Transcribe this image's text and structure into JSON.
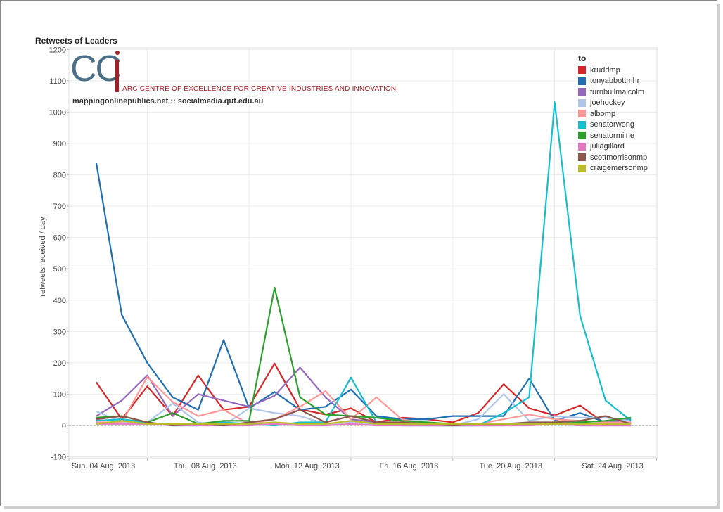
{
  "logo": {
    "letters": "CC",
    "subtitle": "ARC CENTRE OF EXCELLENCE FOR CREATIVE INDUSTRIES AND INNOVATION",
    "url": "mappingonlinepublics.net :: socialmedia.qut.edu.au"
  },
  "chart_data": {
    "type": "line",
    "title": "Retweets of Leaders",
    "xlabel": "",
    "ylabel": "retweets received / day",
    "ylim": [
      -100,
      1200
    ],
    "yticks": [
      -100,
      0,
      100,
      200,
      300,
      400,
      500,
      600,
      700,
      800,
      900,
      1000,
      1100,
      1200
    ],
    "x": [
      "2013-08-04",
      "2013-08-05",
      "2013-08-06",
      "2013-08-07",
      "2013-08-08",
      "2013-08-09",
      "2013-08-10",
      "2013-08-11",
      "2013-08-12",
      "2013-08-13",
      "2013-08-14",
      "2013-08-15",
      "2013-08-16",
      "2013-08-17",
      "2013-08-18",
      "2013-08-19",
      "2013-08-20",
      "2013-08-21",
      "2013-08-22",
      "2013-08-23",
      "2013-08-24",
      "2013-08-25"
    ],
    "xtick_labels": [
      "Sun. 04 Aug. 2013",
      "Thu. 08 Aug. 2013",
      "Mon. 12 Aug. 2013",
      "Fri. 16 Aug. 2013",
      "Tue. 20 Aug. 2013",
      "Sat. 24 Aug. 2013"
    ],
    "xtick_index": [
      0,
      4,
      8,
      12,
      16,
      20
    ],
    "grid": true,
    "legend_title": "to",
    "legend_position": "top-right",
    "series": [
      {
        "name": "kruddmp",
        "color": "#d62728",
        "values": [
          138,
          20,
          125,
          30,
          160,
          50,
          60,
          198,
          52,
          35,
          55,
          10,
          25,
          20,
          10,
          40,
          132,
          55,
          32,
          64,
          5,
          10
        ]
      },
      {
        "name": "tonyabbottmhr",
        "color": "#1f6fb4",
        "values": [
          837,
          353,
          200,
          90,
          50,
          273,
          55,
          107,
          50,
          60,
          115,
          30,
          20,
          20,
          30,
          30,
          30,
          150,
          15,
          40,
          10,
          20
        ]
      },
      {
        "name": "turnbullmalcolm",
        "color": "#9467bd",
        "values": [
          30,
          80,
          160,
          30,
          100,
          80,
          60,
          95,
          185,
          90,
          20,
          10,
          5,
          0,
          0,
          0,
          0,
          10,
          5,
          0,
          0,
          0
        ]
      },
      {
        "name": "joehockey",
        "color": "#aec7e8",
        "values": [
          45,
          10,
          10,
          70,
          10,
          0,
          55,
          40,
          30,
          5,
          10,
          5,
          0,
          0,
          0,
          20,
          100,
          15,
          30,
          25,
          25,
          15
        ]
      },
      {
        "name": "albomp",
        "color": "#ff9896",
        "values": [
          10,
          10,
          155,
          75,
          30,
          50,
          5,
          20,
          60,
          110,
          20,
          90,
          20,
          5,
          5,
          5,
          20,
          35,
          20,
          15,
          10,
          10
        ]
      },
      {
        "name": "senatorwong",
        "color": "#17becf",
        "values": [
          15,
          20,
          10,
          0,
          0,
          10,
          5,
          0,
          10,
          10,
          153,
          10,
          0,
          0,
          0,
          0,
          40,
          90,
          1032,
          350,
          80,
          15
        ]
      },
      {
        "name": "senatormilne",
        "color": "#2ca02c",
        "values": [
          25,
          30,
          10,
          40,
          5,
          15,
          15,
          440,
          90,
          35,
          30,
          25,
          15,
          10,
          5,
          5,
          5,
          5,
          5,
          10,
          15,
          25
        ]
      },
      {
        "name": "juliagillard",
        "color": "#e377c2",
        "values": [
          5,
          5,
          5,
          0,
          0,
          0,
          0,
          5,
          0,
          0,
          5,
          0,
          0,
          0,
          0,
          0,
          0,
          0,
          5,
          0,
          0,
          0
        ]
      },
      {
        "name": "scottmorrisonmp",
        "color": "#8c564b",
        "values": [
          20,
          30,
          10,
          0,
          5,
          0,
          10,
          20,
          50,
          10,
          30,
          10,
          10,
          5,
          0,
          5,
          5,
          10,
          10,
          15,
          30,
          5
        ]
      },
      {
        "name": "craigemersonmp",
        "color": "#bcbd22",
        "values": [
          5,
          15,
          5,
          5,
          5,
          5,
          5,
          10,
          5,
          5,
          15,
          5,
          5,
          5,
          5,
          5,
          5,
          5,
          5,
          5,
          5,
          5
        ]
      }
    ]
  }
}
